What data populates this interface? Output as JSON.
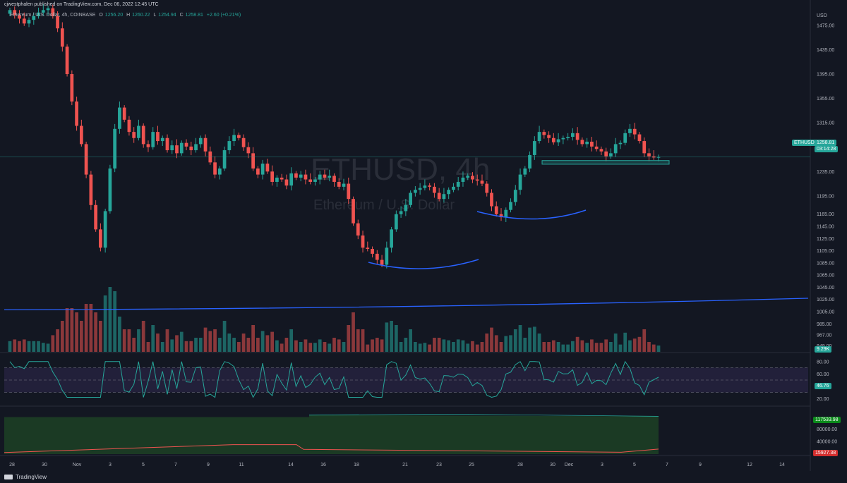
{
  "header": {
    "publisher_line": "cjwestphalen published on TradingView.com, Dec 06, 2022 12:45 UTC",
    "symbol_desc": "Ethereum / U.S. Dollar, 4h, COINBASE",
    "ohlc": {
      "o_label": "O",
      "o": "1256.20",
      "h_label": "H",
      "h": "1260.22",
      "l_label": "L",
      "l": "1254.94",
      "c_label": "C",
      "c": "1258.81",
      "change": "+2.60 (+0.21%)"
    }
  },
  "watermark": {
    "symbol": "ETHUSD, 4h",
    "name": "Ethereum / U.S. Dollar"
  },
  "price_axis": {
    "currency": "USD",
    "ticks": [
      "1475.00",
      "1435.00",
      "1395.00",
      "1355.00",
      "1315.00",
      "1275.00",
      "1235.00",
      "1195.00",
      "1165.00",
      "1145.00",
      "1125.00",
      "1105.00",
      "1085.00",
      "1065.00",
      "1045.00",
      "1025.00",
      "1005.00",
      "985.00",
      "967.00",
      "949.00"
    ],
    "last_price_tag": {
      "symbol": "ETHUSD",
      "price": "1258.81",
      "countdown": "03:14:28"
    },
    "volume_tag": "9.29K"
  },
  "rsi_axis": {
    "ticks": [
      "80.00",
      "60.00",
      "40.00",
      "20.00"
    ],
    "tag": "46.76"
  },
  "bottom_axis": {
    "ticks": [
      "80000.00",
      "40000.00"
    ],
    "tag_green": "117533.98",
    "tag_red": "15927.38"
  },
  "time_axis": {
    "labels": [
      "28",
      "30",
      "Nov",
      "3",
      "5",
      "7",
      "9",
      "11",
      "14",
      "16",
      "18",
      "21",
      "23",
      "25",
      "28",
      "30",
      "Dec",
      "3",
      "5",
      "7",
      "9",
      "12",
      "14"
    ]
  },
  "footer": {
    "brand": "TradingView"
  },
  "colors": {
    "bg": "#131722",
    "up": "#26a69a",
    "down": "#ef5350",
    "ma": "#2962ff",
    "rsi": "#26a69a",
    "rsi_band": "#2a2545",
    "area_green": "#1b3a24",
    "red_line": "#ef5350",
    "zone": "#26a69a"
  },
  "chart_data": {
    "type": "candlestick",
    "timeframe": "4h",
    "symbol": "ETHUSD",
    "ylim": [
      939,
      1505
    ],
    "close_series": [
      1500,
      1492,
      1486,
      1478,
      1484,
      1490,
      1496,
      1500,
      1503,
      1490,
      1470,
      1440,
      1395,
      1350,
      1310,
      1280,
      1230,
      1180,
      1140,
      1110,
      1170,
      1240,
      1305,
      1340,
      1320,
      1300,
      1290,
      1310,
      1280,
      1275,
      1300,
      1285,
      1290,
      1270,
      1278,
      1265,
      1282,
      1276,
      1270,
      1280,
      1290,
      1268,
      1250,
      1230,
      1240,
      1270,
      1285,
      1295,
      1290,
      1275,
      1265,
      1240,
      1230,
      1248,
      1235,
      1218,
      1225,
      1222,
      1212,
      1232,
      1225,
      1230,
      1222,
      1218,
      1222,
      1230,
      1225,
      1228,
      1218,
      1210,
      1215,
      1190,
      1150,
      1130,
      1110,
      1108,
      1100,
      1090,
      1082,
      1110,
      1140,
      1165,
      1170,
      1180,
      1200,
      1205,
      1208,
      1212,
      1210,
      1200,
      1190,
      1198,
      1205,
      1210,
      1218,
      1225,
      1228,
      1222,
      1220,
      1215,
      1200,
      1178,
      1165,
      1160,
      1172,
      1185,
      1205,
      1230,
      1240,
      1262,
      1285,
      1300,
      1295,
      1290,
      1283,
      1288,
      1290,
      1292,
      1298,
      1287,
      1280,
      1284,
      1276,
      1272,
      1268,
      1260,
      1265,
      1280,
      1282,
      1298,
      1305,
      1296,
      1285,
      1265,
      1260,
      1258,
      1258.81
    ],
    "ma_line": {
      "start": 1008,
      "end": 1027
    },
    "volume_tag": "9.29K",
    "rsi_last": 46.76,
    "support_zone": [
      1247,
      1253
    ]
  }
}
